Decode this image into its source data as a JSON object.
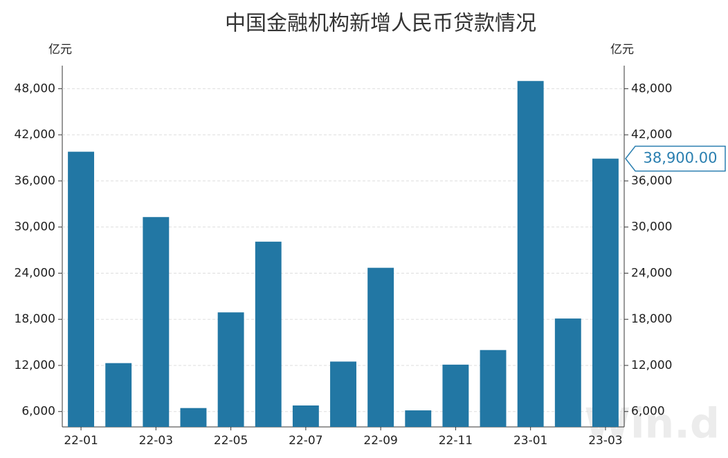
{
  "chart_data": {
    "type": "bar",
    "title": "中国金融机构新增人民币贷款情况",
    "y_unit": "亿元",
    "y2_unit": "亿元",
    "watermark": "Win.d",
    "categories": [
      "22-01",
      null,
      "22-03",
      null,
      "22-05",
      null,
      "22-07",
      null,
      "22-09",
      null,
      "22-11",
      null,
      "23-01",
      null,
      "23-03"
    ],
    "values": [
      39800,
      12300,
      31300,
      6454,
      18900,
      28100,
      6790,
      12500,
      24700,
      6152,
      12100,
      14000,
      49000,
      18100,
      38900
    ],
    "value_labels": [
      null,
      null,
      null,
      null,
      null,
      null,
      null,
      null,
      null,
      null,
      null,
      null,
      null,
      null,
      "38,900.00"
    ],
    "color": "#2277a4",
    "ylim": [
      4000,
      51000
    ],
    "yticks": [
      {
        "value": 6000,
        "label": "6,000"
      },
      {
        "value": 12000,
        "label": "12,000"
      },
      {
        "value": 18000,
        "label": "18,000"
      },
      {
        "value": 24000,
        "label": "24,000"
      },
      {
        "value": 30000,
        "label": "30,000"
      },
      {
        "value": 36000,
        "label": "36,000"
      },
      {
        "value": 42000,
        "label": "42,000"
      },
      {
        "value": 48000,
        "label": "48,000"
      }
    ],
    "y2lim": [
      4000,
      51000
    ],
    "y2ticks": [
      {
        "value": 6000,
        "label": "6,000"
      },
      {
        "value": 12000,
        "label": "12,000"
      },
      {
        "value": 18000,
        "label": "18,000"
      },
      {
        "value": 24000,
        "label": "24,000"
      },
      {
        "value": 30000,
        "label": "30,000"
      },
      {
        "value": 36000,
        "label": "36,000"
      },
      {
        "value": 42000,
        "label": "42,000"
      },
      {
        "value": 48000,
        "label": "48,000"
      }
    ],
    "grid": true
  }
}
